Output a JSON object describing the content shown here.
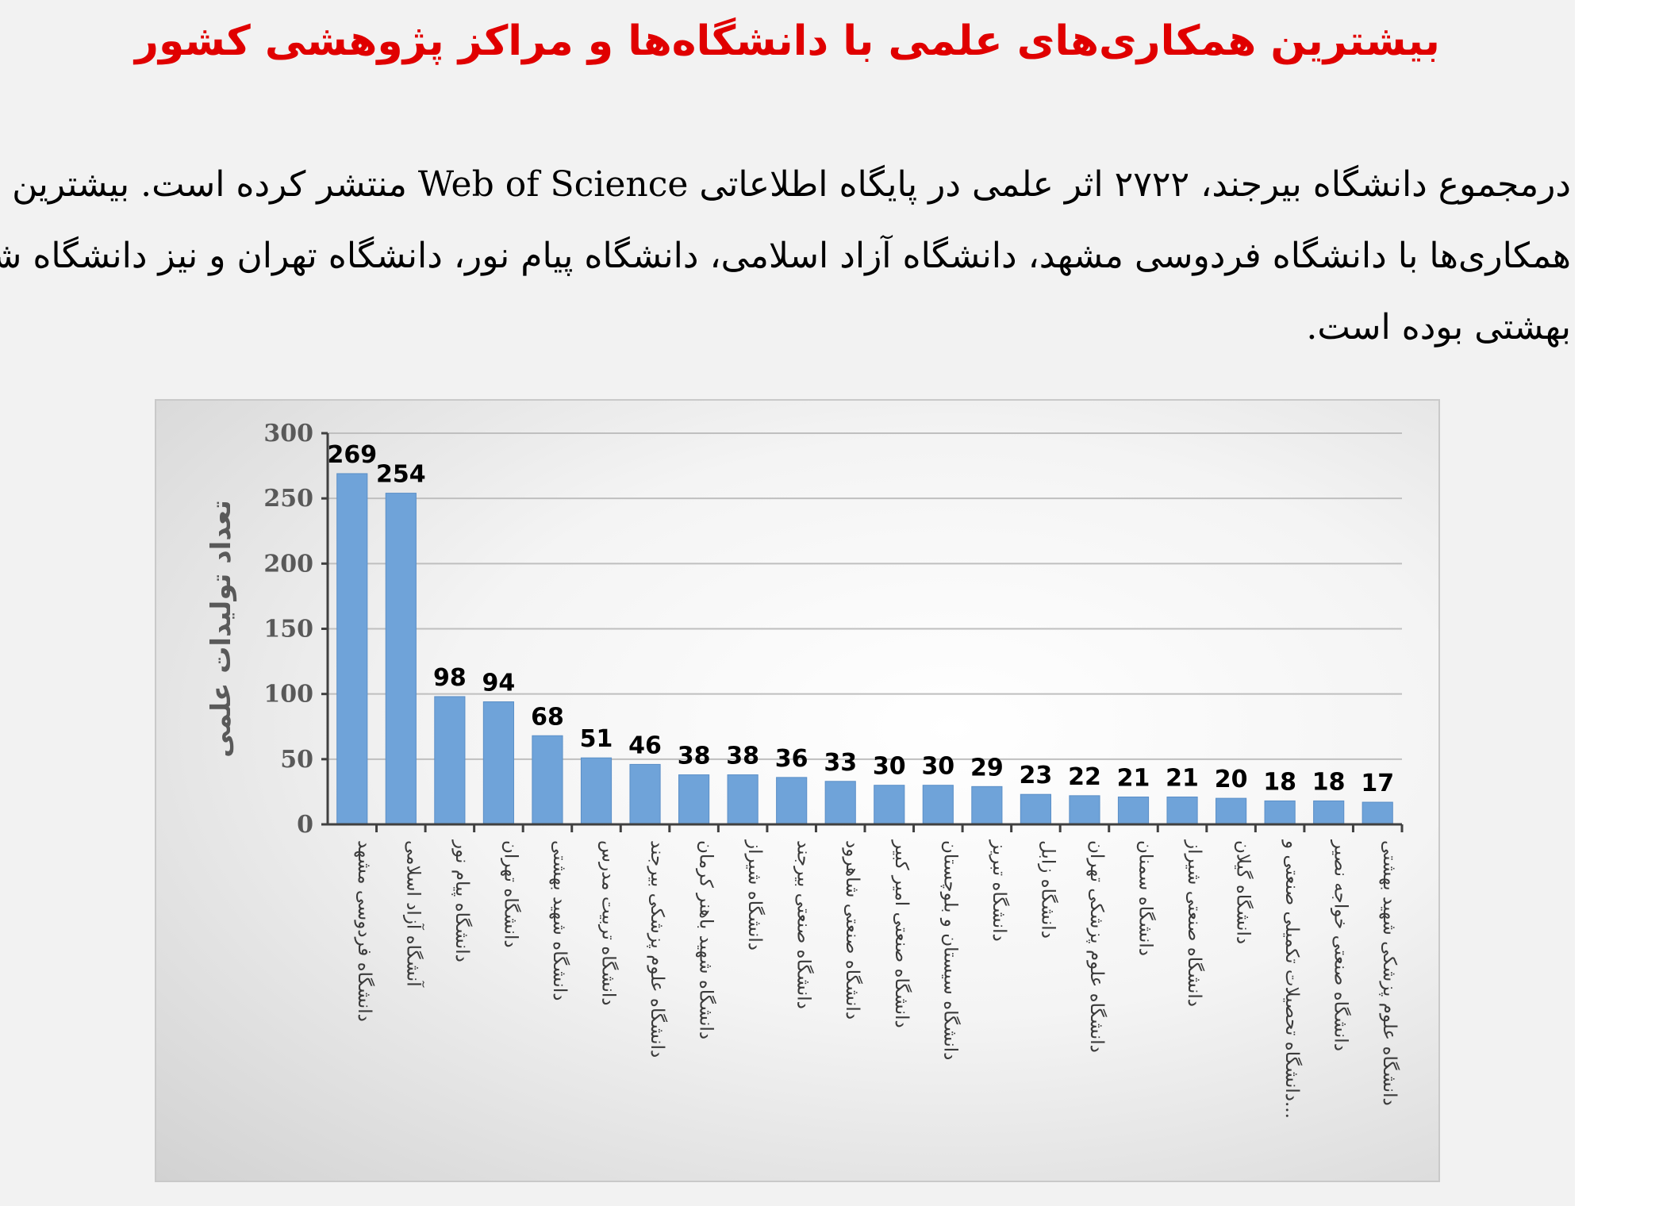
{
  "title": "بیشترین همکاری‌های علمی با دانشگاه‌ها و مراکز پژوهشی کشور",
  "paragraph": {
    "lines": [
      "درمجموع دانشگاه بیرجند، ۲۷۲۲ اثر علمی در پایگاه اطلاعاتی Web of Science منتشر کرده است. بیشترین",
      "همکاری‌ها با دانشگاه فردوسی مشهد، دانشگاه آزاد اسلامی، دانشگاه پیام نور، دانشگاه تهران و نیز دانشگاه شهید",
      "بهشتی بوده است."
    ]
  },
  "colors": {
    "title": "#e00000",
    "bar": "#6fa3d9",
    "bar_edge": "#5b8fc7",
    "axis": "#404040",
    "grid": "#bfbfbf"
  },
  "chart_data": {
    "type": "bar",
    "title": "",
    "xlabel": "",
    "ylabel": "تعداد تولیدات علمی",
    "ylim": [
      0,
      300
    ],
    "yticks": [
      0,
      50,
      100,
      150,
      200,
      250,
      300
    ],
    "grid": true,
    "legend": "none",
    "categories": [
      "دانشگاه فردوسی مشهد",
      "آنشگاه آزاد اسلامی",
      "دانشگاه پیام نور",
      "دانشگاه تهران",
      "دانشگاه شهید بهشتی",
      "دانشگاه تربیت مدرس",
      "دانشگاه علوم پزشکی بیرجند",
      "دانشگاه شهید باهنر کرمان",
      "دانشگاه شیراز",
      "دانشگاه صنعتی بیرجند",
      "دانشگاه صنعتی شاهرود",
      "دانشگاه صنعتی امیر کبیر",
      "دانشگاه سیستان و بلوچستان",
      "دانشگاه تبریز",
      "دانشگاه زابل",
      "دانشگاه علوم پزشکی تهران",
      "دانشگاه سمنان",
      "دانشگاه صنعتی شیراز",
      "دانشگاه گیلان",
      "دانشگاه تحصیلات تکمیلی صنعتی و...",
      "دانشگاه صنعتی خواجه نصیر",
      "دانشگاه علوم پزشکی شهید بهشتی"
    ],
    "values": [
      269,
      254,
      98,
      94,
      68,
      51,
      46,
      38,
      38,
      36,
      33,
      30,
      30,
      29,
      23,
      22,
      21,
      21,
      20,
      18,
      18,
      17
    ]
  }
}
